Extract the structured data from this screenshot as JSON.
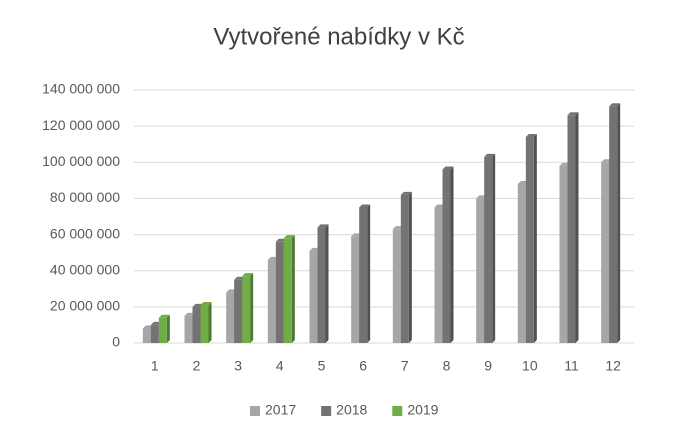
{
  "chart_data": {
    "type": "bar",
    "title": "Vytvořené nabídky v Kč",
    "categories": [
      "1",
      "2",
      "3",
      "4",
      "5",
      "6",
      "7",
      "8",
      "9",
      "10",
      "11",
      "12"
    ],
    "series": [
      {
        "name": "2017",
        "color": "#a6a6a6",
        "values": [
          8000000,
          15000000,
          28000000,
          46000000,
          51000000,
          59000000,
          63000000,
          75000000,
          80000000,
          88000000,
          98000000,
          100000000
        ]
      },
      {
        "name": "2018",
        "color": "#737373",
        "values": [
          10000000,
          20000000,
          35000000,
          56000000,
          64000000,
          75000000,
          82000000,
          96000000,
          103000000,
          114000000,
          126000000,
          131000000
        ]
      },
      {
        "name": "2019",
        "color": "#70ad47",
        "values": [
          14000000,
          21000000,
          37000000,
          58000000,
          null,
          null,
          null,
          null,
          null,
          null,
          null,
          null
        ]
      }
    ],
    "ylim": [
      0,
      140000000
    ],
    "yticks": [
      0,
      {
        "value": 20000000,
        "label": "20 000 000"
      },
      {
        "value": 40000000,
        "label": "40 000 000"
      },
      {
        "value": 60000000,
        "label": "60 000 000"
      },
      {
        "value": 80000000,
        "label": "80 000 000"
      },
      {
        "value": 100000000,
        "label": "100 000 000"
      },
      {
        "value": 120000000,
        "label": "120 000 000"
      },
      {
        "value": 140000000,
        "label": "140 000 000"
      }
    ],
    "grid": true,
    "legend": "bottom"
  }
}
